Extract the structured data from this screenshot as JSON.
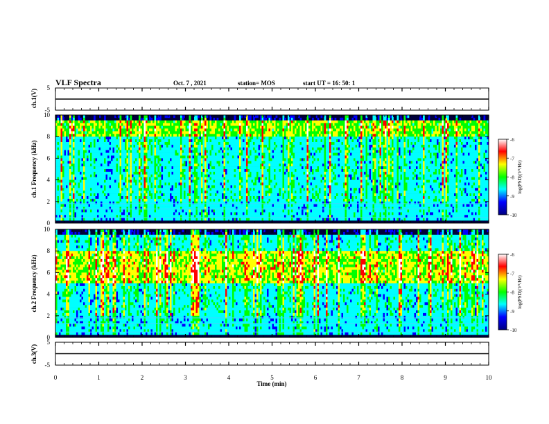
{
  "header": {
    "title": "VLF Spectra",
    "date": "Oct. 7 , 2021",
    "station": "station= MOS",
    "start_ut": "start UT =  16: 50: 1"
  },
  "colors": {
    "colormap": [
      "#000080",
      "#0000ff",
      "#00ffff",
      "#00ff00",
      "#ffff00",
      "#ff0000",
      "#ffffff"
    ],
    "trace": "#000000",
    "background_dark": "#00003a"
  },
  "colorbar": {
    "label": "log(PSD)(V²/Hz)",
    "range": [
      -10,
      -6
    ],
    "ticks": [
      "-6",
      "-7",
      "-8",
      "-9",
      "-10"
    ]
  },
  "chart_data": [
    {
      "type": "line",
      "panel": "ch1-waveform",
      "ylabel": "ch.1(V)",
      "ylim": [
        -5,
        5
      ],
      "y_ticks": [
        "5",
        "-5"
      ],
      "x": [
        0,
        10
      ],
      "values": [
        0,
        0
      ]
    },
    {
      "type": "heatmap",
      "panel": "ch1-spectrogram",
      "ylabel": "ch.1 Frequency (kHz)",
      "ylim": [
        0,
        10
      ],
      "y_ticks": [
        "0",
        "2",
        "4",
        "6",
        "8",
        "10"
      ],
      "zlim": [
        -10,
        -6
      ],
      "description_level": "broadband impulsive bursts strongest 8-9.5 kHz, steady lines near 0.5, 1.3, 1.8 kHz"
    },
    {
      "type": "heatmap",
      "panel": "ch2-spectrogram",
      "ylabel": "ch.2 Frequency (kHz)",
      "ylim": [
        0,
        10
      ],
      "y_ticks": [
        "0",
        "2",
        "4",
        "6",
        "8",
        "10"
      ],
      "zlim": [
        -10,
        -6
      ],
      "description_level": "intense emission band 5-8 kHz, steady lines near 0.5, 1.3, 1.8 kHz"
    },
    {
      "type": "line",
      "panel": "ch3-waveform",
      "ylabel": "ch.3(V)",
      "ylim": [
        -5,
        5
      ],
      "y_ticks": [
        "5",
        "-5"
      ],
      "x": [
        0,
        10
      ],
      "values": [
        0,
        0
      ]
    }
  ],
  "x_axis": {
    "label": "Time (min)",
    "range": [
      0,
      10
    ],
    "ticks": [
      "0",
      "1",
      "2",
      "3",
      "4",
      "5",
      "6",
      "7",
      "8",
      "9",
      "10"
    ]
  }
}
